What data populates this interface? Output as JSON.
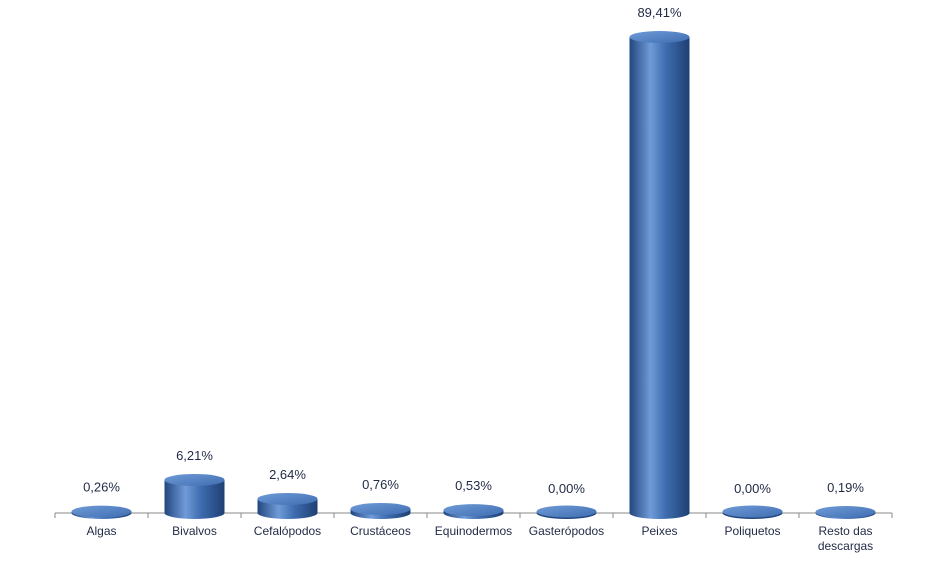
{
  "chart_data": {
    "type": "bar",
    "categories": [
      "Algas",
      "Bivalvos",
      "Cefalópodos",
      "Crustáceos",
      "Equinodermos",
      "Gasterópodos",
      "Peixes",
      "Poliquetos",
      "Resto das descargas"
    ],
    "category_labels": [
      [
        "Algas"
      ],
      [
        "Bivalvos"
      ],
      [
        "Cefalópodos"
      ],
      [
        "Crustáceos"
      ],
      [
        "Equinodermos"
      ],
      [
        "Gasterópodos"
      ],
      [
        "Peixes"
      ],
      [
        "Poliquetos"
      ],
      [
        "Resto das",
        "descargas"
      ]
    ],
    "values": [
      0.26,
      6.21,
      2.64,
      0.76,
      0.53,
      0.0,
      89.41,
      0.0,
      0.19
    ],
    "value_labels": [
      "0,26%",
      "6,21%",
      "2,64%",
      "0,76%",
      "0,53%",
      "0,00%",
      "89,41%",
      "0,00%",
      "0,19%"
    ],
    "title": "",
    "xlabel": "",
    "ylabel": "",
    "ylim": [
      0,
      89.41
    ],
    "grid": false,
    "legend": "none",
    "bar_style": "3d-cylinder",
    "colors": {
      "bar_base": "#3f6db0",
      "bar_light": "#6f9bd8",
      "bar_dark": "#23477f",
      "bar_top": "#5583c4",
      "axis": "#8a8a8a",
      "text": "#1f2a44"
    }
  }
}
